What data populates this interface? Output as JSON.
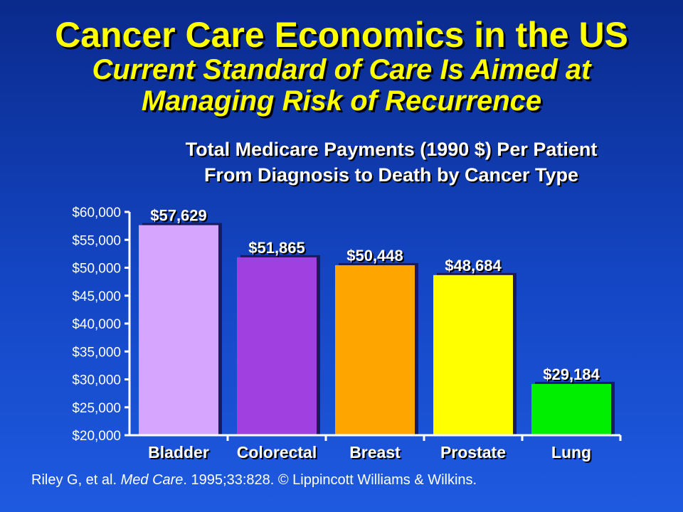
{
  "slide": {
    "title": "Cancer Care Economics in the US",
    "subtitle_line1": "Current Standard of Care Is Aimed at",
    "subtitle_line2": "Managing Risk of Recurrence",
    "chart_title_line1": "Total Medicare Payments (1990 $) Per Patient",
    "chart_title_line2": "From Diagnosis to Death by Cancer Type",
    "citation_author": "Riley G, et al.",
    "citation_journal": "Med Care",
    "citation_rest": ". 1995;33:828. © Lippincott Williams & Wilkins."
  },
  "chart_data": {
    "type": "bar",
    "title": "Total Medicare Payments (1990 $) Per Patient From Diagnosis to Death by Cancer Type",
    "categories": [
      "Bladder",
      "Colorectal",
      "Breast",
      "Prostate",
      "Lung"
    ],
    "values": [
      57629,
      51865,
      50448,
      48684,
      29184
    ],
    "data_labels": [
      "$57,629",
      "$51,865",
      "$50,448",
      "$48,684",
      "$29,184"
    ],
    "bar_colors": [
      "#d6a6ff",
      "#a040e0",
      "#ffa500",
      "#ffff00",
      "#00ee00"
    ],
    "ylim": [
      20000,
      60000
    ],
    "yticks": [
      20000,
      25000,
      30000,
      35000,
      40000,
      45000,
      50000,
      55000,
      60000
    ],
    "ytick_labels": [
      "$20,000",
      "$25,000",
      "$30,000",
      "$35,000",
      "$40,000",
      "$45,000",
      "$50,000",
      "$55,000",
      "$60,000"
    ],
    "xlabel": "",
    "ylabel": "",
    "grid": false
  }
}
